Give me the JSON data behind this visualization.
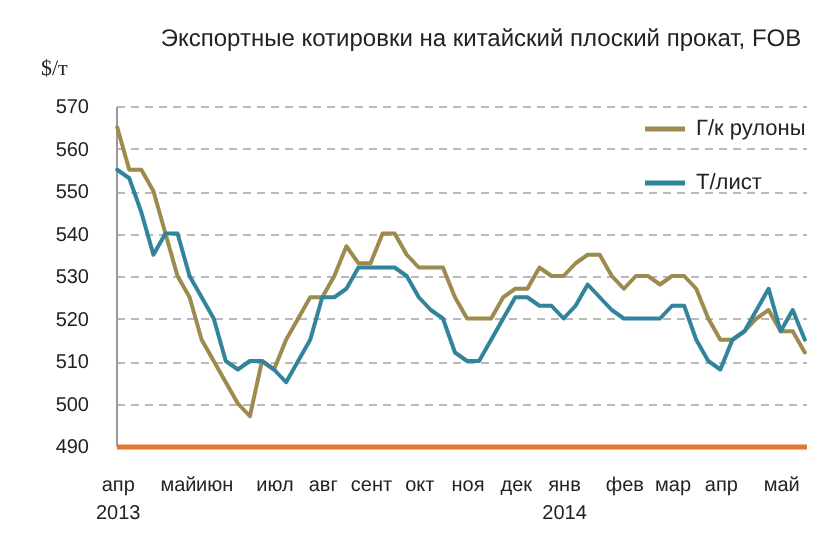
{
  "chart_data": {
    "type": "line",
    "title": "Экспортные котировки на китайский плоский прокат,  FOB",
    "ylabel": "$/т",
    "categories": [
      "апр\n2013",
      null,
      null,
      null,
      null,
      "май",
      null,
      null,
      "июн",
      null,
      null,
      null,
      null,
      "июл",
      null,
      null,
      null,
      "авг",
      null,
      null,
      null,
      "сент",
      null,
      null,
      null,
      "окт",
      null,
      null,
      null,
      "ноя",
      null,
      null,
      null,
      "дек",
      null,
      null,
      null,
      "янв\n2014",
      null,
      null,
      null,
      null,
      "фев",
      null,
      null,
      null,
      "мар",
      null,
      null,
      null,
      "апр",
      null,
      null,
      null,
      null,
      "май",
      null,
      null
    ],
    "series": [
      {
        "name": "Г/к рулоны",
        "color": "#9c8a4e",
        "values": [
          565,
          555,
          555,
          550,
          540,
          530,
          525,
          515,
          510,
          505,
          500,
          497,
          510,
          508,
          515,
          520,
          525,
          525,
          530,
          537,
          533,
          533,
          540,
          540,
          535,
          532,
          532,
          532,
          525,
          520,
          520,
          520,
          525,
          527,
          527,
          532,
          530,
          530,
          533,
          535,
          535,
          530,
          527,
          530,
          530,
          528,
          530,
          530,
          527,
          520,
          515,
          515,
          517,
          520,
          522,
          517,
          517,
          512
        ]
      },
      {
        "name": "Т/лист",
        "color": "#31849b",
        "values": [
          555,
          553,
          545,
          535,
          540,
          540,
          530,
          525,
          520,
          510,
          508,
          510,
          510,
          508,
          505,
          510,
          515,
          525,
          525,
          527,
          532,
          532,
          532,
          532,
          530,
          525,
          522,
          520,
          512,
          510,
          510,
          515,
          520,
          525,
          525,
          523,
          523,
          520,
          523,
          528,
          525,
          522,
          520,
          520,
          520,
          520,
          523,
          523,
          515,
          510,
          508,
          515,
          517,
          522,
          527,
          517,
          522,
          515
        ]
      }
    ],
    "ylim": [
      490,
      570
    ],
    "yticks": [
      490,
      500,
      510,
      520,
      530,
      540,
      550,
      560,
      570
    ],
    "grid": "y",
    "legend": "top right"
  }
}
